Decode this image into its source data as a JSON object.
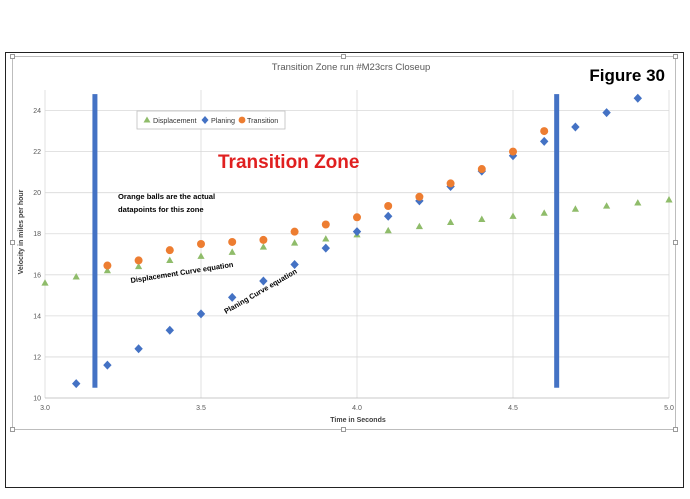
{
  "figure_label": "Figure 30",
  "chart_data": {
    "type": "scatter",
    "title": "Transition Zone run #M23crs  Closeup",
    "xlabel": "Time in Seconds",
    "ylabel": "Velocity in miles per hour",
    "xlim": [
      3.0,
      5.0
    ],
    "ylim": [
      10,
      25
    ],
    "x_ticks": [
      "3.0",
      "3.5",
      "4.0",
      "4.5",
      "5.0"
    ],
    "y_ticks": [
      "10",
      "12",
      "14",
      "16",
      "18",
      "20",
      "22",
      "24"
    ],
    "grid": "major",
    "legend_position": "top-left",
    "series": [
      {
        "name": "Displacement",
        "marker": "triangle",
        "color": "#8fbc6a",
        "x": [
          3.0,
          3.1,
          3.2,
          3.3,
          3.4,
          3.5,
          3.6,
          3.7,
          3.8,
          3.9,
          4.0,
          4.1,
          4.2,
          4.3,
          4.4,
          4.5,
          4.6,
          4.7,
          4.8,
          4.9,
          5.0
        ],
        "y": [
          15.6,
          15.9,
          16.2,
          16.4,
          16.7,
          16.9,
          17.1,
          17.35,
          17.55,
          17.75,
          17.95,
          18.15,
          18.35,
          18.55,
          18.7,
          18.85,
          19.0,
          19.2,
          19.35,
          19.5,
          19.65
        ]
      },
      {
        "name": "Planing",
        "marker": "diamond",
        "color": "#4472c4",
        "x": [
          3.1,
          3.2,
          3.3,
          3.4,
          3.5,
          3.6,
          3.7,
          3.8,
          3.9,
          4.0,
          4.1,
          4.2,
          4.3,
          4.4,
          4.5,
          4.6,
          4.7,
          4.8,
          4.9
        ],
        "y": [
          10.7,
          11.6,
          12.4,
          13.3,
          14.1,
          14.9,
          15.7,
          16.5,
          17.3,
          18.1,
          18.85,
          19.6,
          20.3,
          21.05,
          21.8,
          22.5,
          23.2,
          23.9,
          24.6
        ]
      },
      {
        "name": "Transition",
        "marker": "circle",
        "color": "#ed7d31",
        "x": [
          3.2,
          3.3,
          3.4,
          3.5,
          3.6,
          3.7,
          3.8,
          3.9,
          4.0,
          4.1,
          4.2,
          4.3,
          4.4,
          4.5,
          4.6
        ],
        "y": [
          16.45,
          16.7,
          17.2,
          17.5,
          17.6,
          17.7,
          18.1,
          18.45,
          18.8,
          19.35,
          19.8,
          20.45,
          21.15,
          22.0,
          23.0
        ]
      }
    ],
    "zone_boundaries": {
      "color": "#4472c4",
      "x": [
        3.16,
        4.64
      ],
      "y_range": [
        10.5,
        24.8
      ]
    },
    "annotations": {
      "zone_label": "Transition Zone",
      "zone_label_color": "#e02020",
      "note_line1": "Orange balls are the actual",
      "note_line2": "datapoints for this zone",
      "displacement_curve": "Displacement Curve equation",
      "planing_curve": "Planing Curve equation"
    }
  }
}
